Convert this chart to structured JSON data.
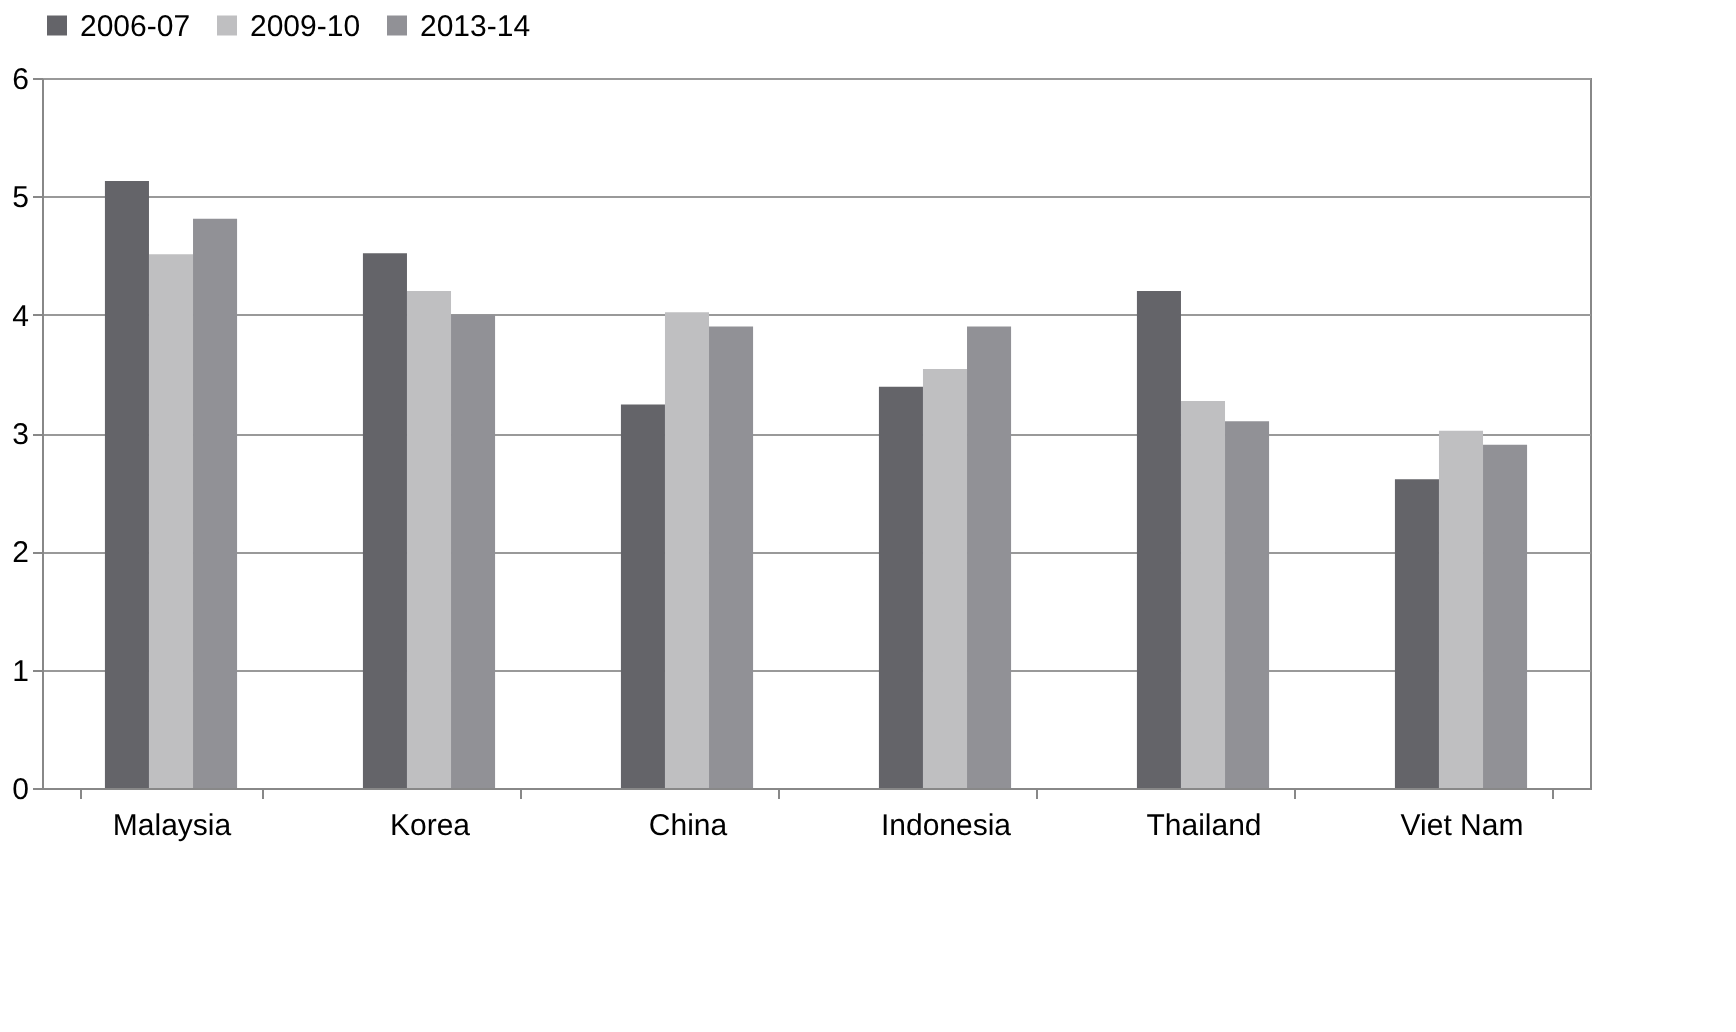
{
  "chart_data": {
    "type": "bar",
    "categories": [
      "Malaysia",
      "Korea",
      "China",
      "Indonesia",
      "Thailand",
      "Viet Nam"
    ],
    "series": [
      {
        "name": "2006-07",
        "color": "#646469",
        "values": [
          5.13,
          4.52,
          3.24,
          3.39,
          4.2,
          2.61
        ]
      },
      {
        "name": "2009-10",
        "color": "#bfbfc1",
        "values": [
          4.51,
          4.2,
          4.02,
          3.54,
          3.27,
          3.02
        ]
      },
      {
        "name": "2013-14",
        "color": "#919196",
        "values": [
          4.81,
          4.0,
          3.9,
          3.9,
          3.1,
          2.9
        ]
      }
    ],
    "ylim": [
      0,
      6
    ],
    "yticks": [
      0,
      1,
      2,
      3,
      4,
      5,
      6
    ],
    "grid": "y",
    "legend": "top"
  }
}
